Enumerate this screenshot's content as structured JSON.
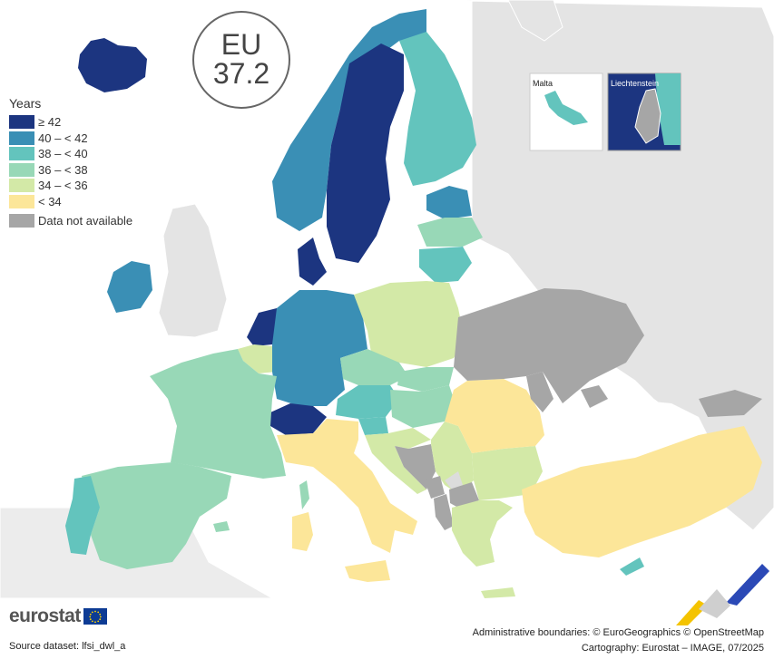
{
  "badge": {
    "line1": "EU",
    "line2": "37.2"
  },
  "legend": {
    "title": "Years",
    "classes": [
      {
        "label": "≥ 42",
        "color": "#1c3580"
      },
      {
        "label": "40 – < 42",
        "color": "#3a8fb5"
      },
      {
        "label": "38 – < 40",
        "color": "#63c4bd"
      },
      {
        "label": "36 – < 38",
        "color": "#98d8b7"
      },
      {
        "label": "34 – < 36",
        "color": "#d3e9a7"
      },
      {
        "label": "< 34",
        "color": "#fce699"
      }
    ],
    "not_available": {
      "label": "Data not available",
      "color": "#a6a6a6"
    }
  },
  "insets": {
    "malta": "Malta",
    "liechtenstein": "Liechtenstein"
  },
  "logo": "eurostat",
  "source": "Source dataset: lfsi_dwl_a",
  "credits": {
    "line1": "Administrative boundaries: © EuroGeographics © OpenStreetMap",
    "line2": "Cartography: Eurostat – IMAGE, 07/2025"
  }
}
